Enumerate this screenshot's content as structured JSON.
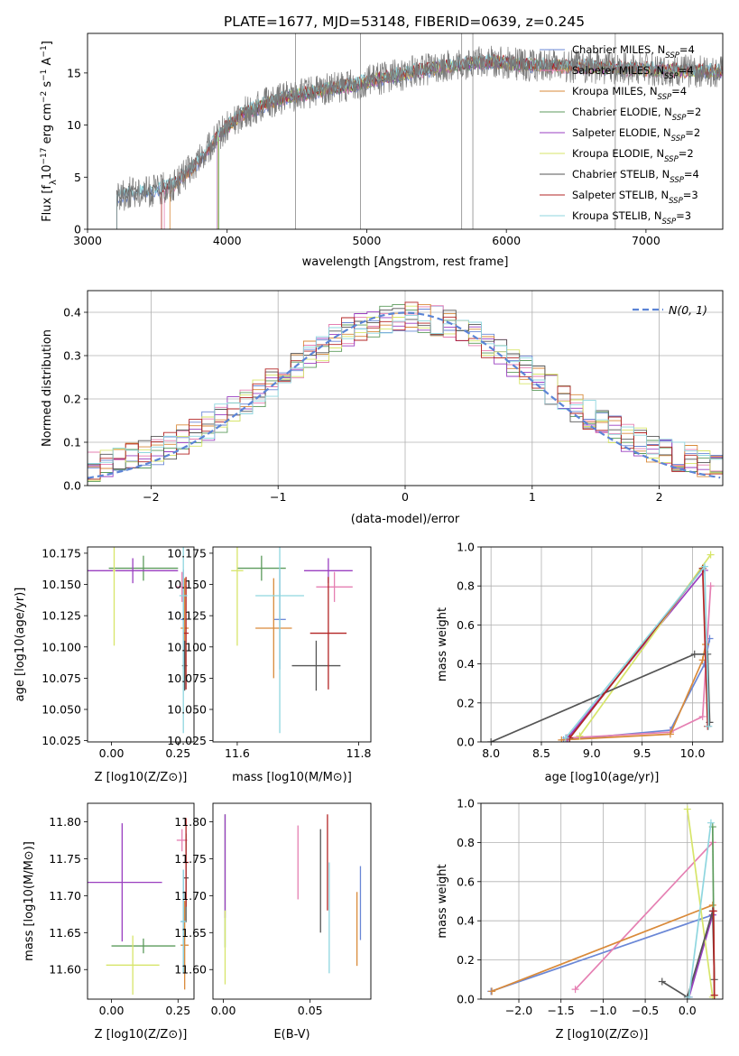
{
  "figure_title": "PLATE=1677, MJD=53148, FIBERID=0639, z=0.245",
  "palette": [
    "#6a87d6",
    "#e57fb2",
    "#d98a3a",
    "#5c9b5c",
    "#9a3fc0",
    "#d7e56a",
    "#555555",
    "#b32424",
    "#8fd6df"
  ],
  "chart_data": [
    {
      "id": "spectrum",
      "type": "line",
      "title": "PLATE=1677, MJD=53148, FIBERID=0639, z=0.245",
      "xlabel": "wavelength [Angstrom, rest frame]",
      "ylabel": "Flux [f_λ 10^-17 erg cm^-2 s^-1 A^-1]",
      "xlim": [
        3000,
        7550
      ],
      "ylim": [
        0,
        18.8
      ],
      "xticks": [
        3000,
        4000,
        5000,
        6000,
        7000
      ],
      "yticks": [
        0,
        5,
        10,
        15
      ],
      "grid": false,
      "legend": "right",
      "legend_entries": [
        "Chabrier MILES, N_SSP=4",
        "Salpeter MILES, N_SSP=4",
        "Kroupa MILES, N_SSP=4",
        "Chabrier ELODIE, N_SSP=2",
        "Salpeter ELODIE, N_SSP=2",
        "Kroupa ELODIE, N_SSP=2",
        "Chabrier STELIB, N_SSP=4",
        "Salpeter STELIB, N_SSP=3",
        "Kroupa STELIB, N_SSP=3"
      ],
      "data_series": {
        "name": "data",
        "x": [
          3210,
          3300,
          3450,
          3600,
          3800,
          3950,
          4100,
          4300,
          4500,
          4700,
          4900,
          5100,
          5300,
          5500,
          5700,
          5900,
          6100,
          6300,
          6500,
          6700,
          6900,
          7100,
          7300,
          7500
        ],
        "y": [
          3.2,
          3.5,
          3.6,
          4.1,
          6.5,
          9.2,
          11.0,
          12.2,
          12.9,
          13.4,
          13.8,
          14.5,
          15.0,
          15.5,
          15.8,
          16.1,
          15.8,
          15.7,
          15.6,
          15.5,
          15.4,
          15.3,
          15.2,
          15.1
        ]
      },
      "model_starts": [
        3210,
        3550,
        3590,
        3940,
        3930,
        3935,
        3210,
        3530,
        3210
      ]
    },
    {
      "id": "residuals",
      "type": "line",
      "xlabel": "(data-model)/error",
      "ylabel": "Normed distribution",
      "xlim": [
        -2.5,
        2.5
      ],
      "ylim": [
        0,
        0.45
      ],
      "xticks": [
        -2,
        -1,
        0,
        1,
        2
      ],
      "yticks": [
        0.0,
        0.1,
        0.2,
        0.3,
        0.4
      ],
      "grid": true,
      "legend": "top-right",
      "legend_entries": [
        "N(0, 1)"
      ],
      "reference_curve": "N(0,1)"
    },
    {
      "id": "age-vs-Z",
      "type": "scatter",
      "xlabel": "Z [log10(Z/Z⊙)]",
      "ylabel": "age [log10(age/yr)]",
      "xlim": [
        -0.09,
        0.31
      ],
      "ylim": [
        10.024,
        10.18
      ],
      "xticks": [
        0.0,
        0.25
      ],
      "yticks": [
        10.025,
        10.05,
        10.075,
        10.1,
        10.125,
        10.15,
        10.175
      ],
      "points": [
        [
          0.27,
          10.122
        ],
        [
          0.265,
          10.148
        ],
        [
          0.275,
          10.115
        ],
        [
          0.12,
          10.163
        ],
        [
          0.08,
          10.161
        ],
        [
          0.01,
          10.161
        ],
        [
          0.275,
          10.085
        ],
        [
          0.28,
          10.111
        ],
        [
          0.27,
          10.141
        ]
      ],
      "xerr": [
        0.01,
        0.02,
        0.015,
        0.13,
        0.17,
        0.005,
        0.01,
        0.01,
        0.015
      ],
      "yerr": [
        0.04,
        0.012,
        0.04,
        0.01,
        0.01,
        0.06,
        0.02,
        0.045,
        0.11
      ]
    },
    {
      "id": "age-vs-mass",
      "type": "scatter",
      "xlabel": "mass [log10(M/M⊙)]",
      "ylabel": "",
      "xlim": [
        11.56,
        11.82
      ],
      "ylim": [
        10.024,
        10.18
      ],
      "xticks": [
        11.6,
        11.8
      ],
      "yticks": [
        10.025,
        10.05,
        10.075,
        10.1,
        10.125,
        10.15,
        10.175
      ],
      "points": [
        [
          11.67,
          10.122
        ],
        [
          11.76,
          10.148
        ],
        [
          11.66,
          10.115
        ],
        [
          11.64,
          10.163
        ],
        [
          11.75,
          10.161
        ],
        [
          11.6,
          10.161
        ],
        [
          11.73,
          10.085
        ],
        [
          11.75,
          10.111
        ],
        [
          11.67,
          10.141
        ]
      ],
      "xerr": [
        0.01,
        0.03,
        0.03,
        0.04,
        0.04,
        0.01,
        0.04,
        0.03,
        0.04
      ],
      "yerr": [
        0.04,
        0.012,
        0.04,
        0.01,
        0.01,
        0.06,
        0.02,
        0.045,
        0.11
      ]
    },
    {
      "id": "massweight-vs-age",
      "type": "line",
      "xlabel": "age [log10(age/yr)]",
      "ylabel": "mass weight",
      "xlim": [
        7.9,
        10.3
      ],
      "ylim": [
        0,
        1.0
      ],
      "xticks": [
        8.0,
        8.5,
        9.0,
        9.5,
        10.0
      ],
      "yticks": [
        0.0,
        0.2,
        0.4,
        0.6,
        0.8,
        1.0
      ],
      "grid": true,
      "series": [
        {
          "x": [
            8.72,
            9.78,
            10.12,
            10.17
          ],
          "y": [
            0.01,
            0.06,
            0.4,
            0.53
          ]
        },
        {
          "x": [
            8.75,
            9.78,
            10.1,
            10.18
          ],
          "y": [
            0.02,
            0.05,
            0.13,
            0.8
          ]
        },
        {
          "x": [
            8.7,
            9.78,
            10.1,
            10.13
          ],
          "y": [
            0.01,
            0.04,
            0.42,
            0.5
          ]
        },
        {
          "x": [
            8.78,
            10.1
          ],
          "y": [
            0.02,
            0.89
          ]
        },
        {
          "x": [
            8.76,
            10.12
          ],
          "y": [
            0.02,
            0.88
          ]
        },
        {
          "x": [
            8.88,
            10.18
          ],
          "y": [
            0.03,
            0.96
          ]
        },
        {
          "x": [
            8.0,
            10.02,
            10.15,
            10.17
          ],
          "y": [
            0.0,
            0.45,
            0.45,
            0.1
          ]
        },
        {
          "x": [
            8.78,
            10.1,
            10.15
          ],
          "y": [
            0.02,
            0.89,
            0.08
          ]
        },
        {
          "x": [
            8.74,
            10.12,
            10.16
          ],
          "y": [
            0.02,
            0.9,
            0.08
          ]
        }
      ]
    },
    {
      "id": "mass-vs-Z",
      "type": "scatter",
      "xlabel": "Z [log10(Z/Z⊙)]",
      "ylabel": "mass [log10(M/M⊙)]",
      "xlim": [
        -0.09,
        0.31
      ],
      "ylim": [
        11.56,
        11.825
      ],
      "xticks": [
        0.0,
        0.25
      ],
      "yticks": [
        11.6,
        11.65,
        11.7,
        11.75,
        11.8
      ],
      "points": [
        [
          0.27,
          11.665
        ],
        [
          0.265,
          11.775
        ],
        [
          0.275,
          11.633
        ],
        [
          0.12,
          11.632
        ],
        [
          0.04,
          11.718
        ],
        [
          0.08,
          11.606
        ],
        [
          0.28,
          11.724
        ],
        [
          0.28,
          11.745
        ],
        [
          0.27,
          11.665
        ]
      ],
      "xerr": [
        0.01,
        0.02,
        0.015,
        0.12,
        0.15,
        0.1,
        0.01,
        0.01,
        0.01
      ],
      "yerr": [
        0.07,
        0.015,
        0.06,
        0.01,
        0.08,
        0.04,
        0.06,
        0.06,
        0.07
      ]
    },
    {
      "id": "mass-vs-ebv",
      "type": "scatter",
      "xlabel": "E(B-V)",
      "ylabel": "",
      "xlim": [
        -0.006,
        0.085
      ],
      "ylim": [
        11.56,
        11.825
      ],
      "xticks": [
        0.0,
        0.05
      ],
      "yticks": [
        11.6,
        11.65,
        11.7,
        11.75,
        11.8
      ],
      "points": [
        [
          0.079,
          11.69
        ],
        [
          0.043,
          11.745
        ],
        [
          0.077,
          11.655
        ],
        [
          0.001,
          11.72
        ],
        [
          0.001,
          11.74
        ],
        [
          0.001,
          11.63
        ],
        [
          0.056,
          11.72
        ],
        [
          0.06,
          11.745
        ],
        [
          0.061,
          11.67
        ]
      ],
      "yerr": [
        0.05,
        0.05,
        0.05,
        0.09,
        0.07,
        0.05,
        0.07,
        0.065,
        0.075
      ]
    },
    {
      "id": "massweight-vs-Z",
      "type": "line",
      "xlabel": "Z [log10(Z/Z⊙)]",
      "ylabel": "mass weight",
      "xlim": [
        -2.45,
        0.42
      ],
      "ylim": [
        0,
        1.0
      ],
      "xticks": [
        -2.0,
        -1.5,
        -1.0,
        -0.5,
        0.0
      ],
      "yticks": [
        0.0,
        0.2,
        0.4,
        0.6,
        0.8,
        1.0
      ],
      "grid": true,
      "series": [
        {
          "x": [
            -2.33,
            0.3
          ],
          "y": [
            0.04,
            0.43
          ]
        },
        {
          "x": [
            -1.33,
            0.3
          ],
          "y": [
            0.05,
            0.8
          ]
        },
        {
          "x": [
            -2.32,
            0.3
          ],
          "y": [
            0.04,
            0.48
          ]
        },
        {
          "x": [
            0.3,
            0.32
          ],
          "y": [
            0.88,
            0.02
          ]
        },
        {
          "x": [
            0.02,
            0.3
          ],
          "y": [
            0.01,
            0.43
          ]
        },
        {
          "x": [
            0.0,
            0.3
          ],
          "y": [
            0.97,
            0.01
          ]
        },
        {
          "x": [
            -0.3,
            0.0,
            0.3,
            0.32
          ],
          "y": [
            0.09,
            0.01,
            0.45,
            0.1
          ]
        },
        {
          "x": [
            0.31,
            0.32
          ],
          "y": [
            0.45,
            0.02
          ]
        },
        {
          "x": [
            0.02,
            0.28
          ],
          "y": [
            0.01,
            0.9
          ]
        }
      ]
    }
  ]
}
